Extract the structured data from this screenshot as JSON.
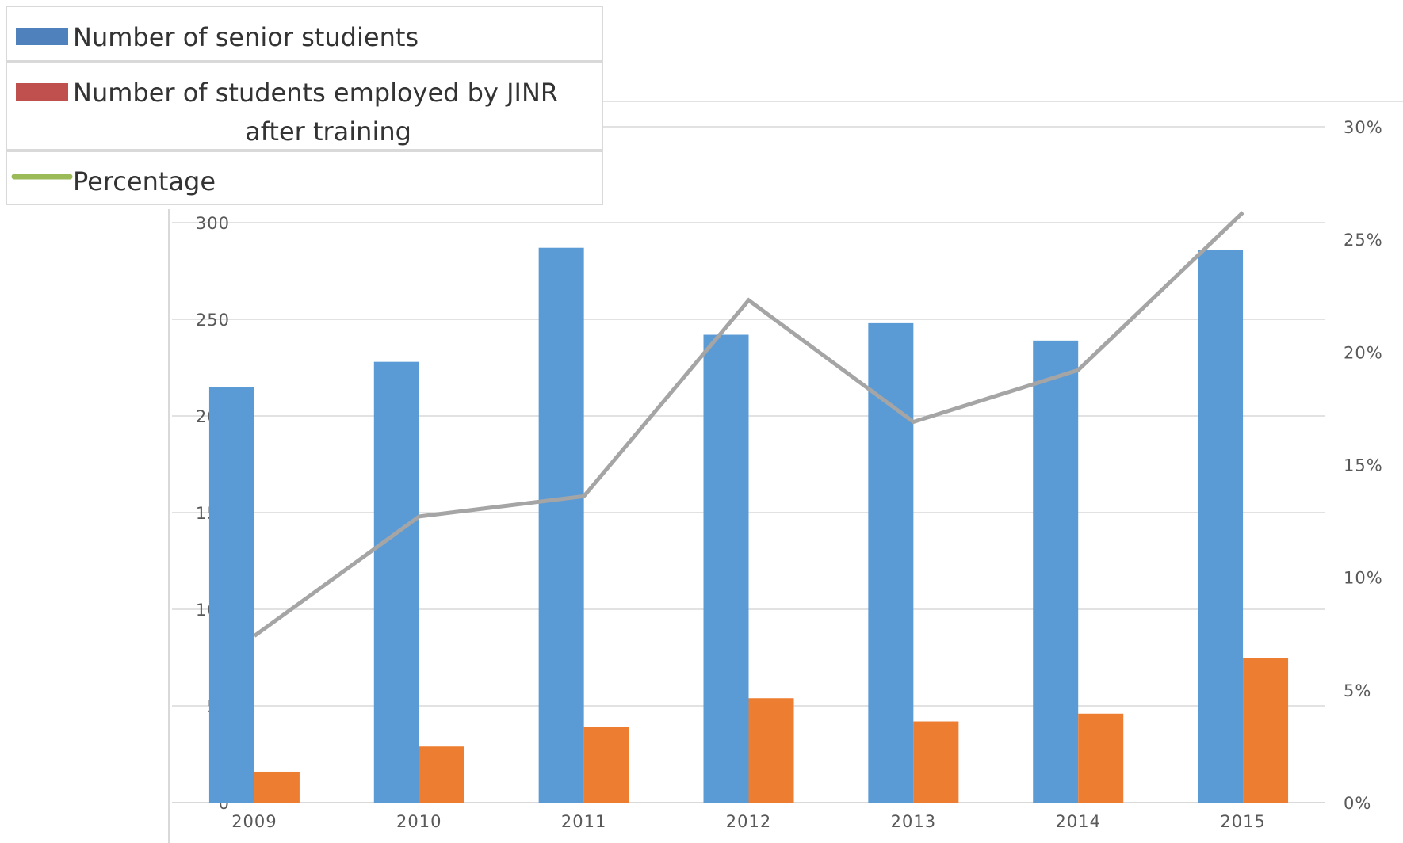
{
  "chart_data": {
    "type": "bar",
    "categories": [
      "2009",
      "2010",
      "2011",
      "2012",
      "2013",
      "2014",
      "2015"
    ],
    "series": [
      {
        "name": "Number of senior studients",
        "type": "bar",
        "axis": "left",
        "color": "#5b9bd5",
        "values": [
          215,
          228,
          287,
          242,
          248,
          239,
          286
        ]
      },
      {
        "name": "Number of  students employed by JINR after training",
        "type": "bar",
        "axis": "left",
        "color": "#ed7d31",
        "values": [
          16,
          29,
          39,
          54,
          42,
          46,
          75
        ]
      },
      {
        "name": "Percentage",
        "type": "line",
        "axis": "right",
        "color": "#a5a5a5",
        "values": [
          7.4,
          12.7,
          13.6,
          22.3,
          16.9,
          19.2,
          26.2
        ]
      }
    ],
    "y_left": {
      "min": 0,
      "max": 300,
      "ticks": [
        "0",
        "50",
        "100",
        "150",
        "200",
        "250",
        "300"
      ]
    },
    "y_right": {
      "min": 0,
      "max": 30,
      "ticks": [
        "0%",
        "5%",
        "10%",
        "15%",
        "20%",
        "25%",
        "30%"
      ]
    },
    "grid": true,
    "legend": {
      "position": "top-left",
      "items": [
        {
          "lines": [
            "Number of senior studients"
          ],
          "swatch": "#4f81bd",
          "kind": "box"
        },
        {
          "lines": [
            "Number of  students employed by JINR",
            "after training"
          ],
          "swatch": "#c0504d",
          "kind": "box"
        },
        {
          "lines": [
            "Percentage"
          ],
          "swatch": "#9bbb59",
          "kind": "line"
        }
      ]
    },
    "title": "",
    "xlabel": "",
    "ylabel": ""
  }
}
